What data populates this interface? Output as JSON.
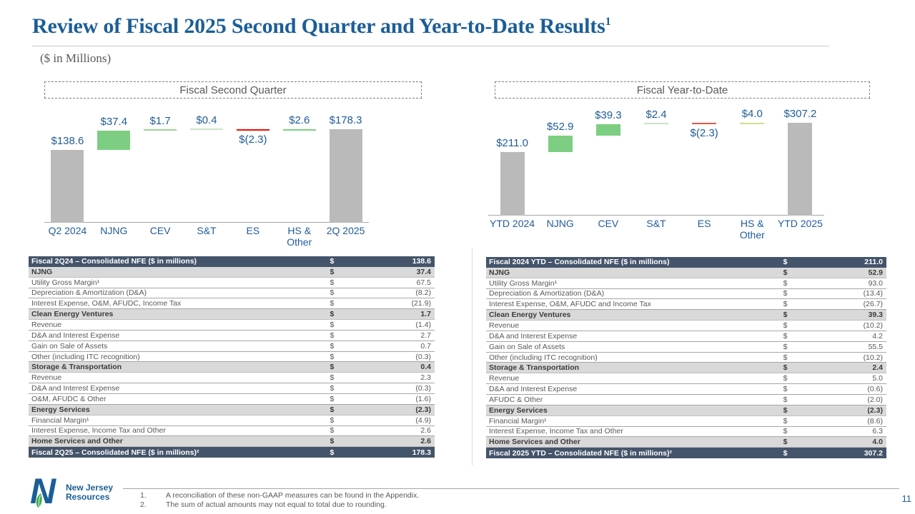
{
  "slide": {
    "title": "Review of Fiscal 2025 Second Quarter and Year-to-Date Results",
    "title_superscript": "1",
    "subtitle": "($ in Millions)",
    "page_number": "11",
    "logo": {
      "line1": "New Jersey",
      "line2": "Resources"
    },
    "footnotes": [
      {
        "num": "1.",
        "text": "A reconciliation of these non-GAAP measures can be found in the Appendix."
      },
      {
        "num": "2.",
        "text": "The sum of actual amounts may not equal to total due to rounding."
      }
    ]
  },
  "colors": {
    "title_blue": "#1B5E97",
    "chart_text_blue": "#1F5C99",
    "table_header_bg": "#44546A",
    "segment_row_bg": "#D9D9D9",
    "bar_gray": "#BABABA",
    "bar_green": "#7DCE82",
    "bar_pale_green": "#C9E5C4",
    "bar_red": "#F10A00",
    "bar_salmon": "#E8594C",
    "bar_yellow_green": "#CBE38B",
    "axis_gray": "#A6A6A6"
  },
  "chart_data": [
    {
      "type": "bar",
      "subtype": "waterfall",
      "title": "Fiscal Second Quarter",
      "categories": [
        "Q2 2024",
        "NJNG",
        "CEV",
        "S&T",
        "ES",
        "HS &\nOther",
        "2Q 2025"
      ],
      "values": [
        138.6,
        37.4,
        1.7,
        0.4,
        -2.3,
        2.6,
        178.3
      ],
      "labels": [
        "$138.6",
        "$37.4",
        "$1.7",
        "$0.4",
        "$(2.3)",
        "$2.6",
        "$178.3"
      ],
      "bar_roles": [
        "total",
        "delta",
        "delta",
        "delta",
        "delta",
        "delta",
        "total"
      ],
      "bar_colors": [
        "#BABABA",
        "#7DCE82",
        "#9AD49A",
        "#C9E5C4",
        "#F10A00",
        "#7DCE82",
        "#BABABA"
      ],
      "ylim": [
        0,
        190
      ],
      "grid": false,
      "legend": false
    },
    {
      "type": "bar",
      "subtype": "waterfall",
      "title": "Fiscal Year-to-Date",
      "categories": [
        "YTD 2024",
        "NJNG",
        "CEV",
        "S&T",
        "ES",
        "HS &\nOther",
        "YTD 2025"
      ],
      "values": [
        211.0,
        52.9,
        39.3,
        2.4,
        -2.3,
        4.0,
        307.2
      ],
      "labels": [
        "$211.0",
        "$52.9",
        "$39.3",
        "$2.4",
        "$(2.3)",
        "$4.0",
        "$307.2"
      ],
      "bar_roles": [
        "total",
        "delta",
        "delta",
        "delta",
        "delta",
        "delta",
        "total"
      ],
      "bar_colors": [
        "#BABABA",
        "#7DCE82",
        "#7DCE82",
        "#C9E5C4",
        "#E8594C",
        "#CBE38B",
        "#BABABA"
      ],
      "ylim": [
        0,
        330
      ],
      "grid": false,
      "legend": false
    }
  ],
  "tables": [
    {
      "name": "Fiscal Second Quarter reconciliation",
      "rows": [
        {
          "label": "Fiscal 2Q24 – Consolidated NFE ($ in millions)",
          "currency": "$",
          "amount": "138.6",
          "style": "total"
        },
        {
          "label": "NJNG",
          "currency": "$",
          "amount": "37.4",
          "style": "segment"
        },
        {
          "label": "Utility Gross Margin¹",
          "currency": "$",
          "amount": "67.5",
          "style": "detail"
        },
        {
          "label": "Depreciation & Amortization (D&A)",
          "currency": "$",
          "amount": "(8.2)",
          "style": "detail"
        },
        {
          "label": "Interest Expense, O&M, AFUDC, Income Tax",
          "currency": "$",
          "amount": "(21.9)",
          "style": "detail"
        },
        {
          "label": "Clean Energy Ventures",
          "currency": "$",
          "amount": "1.7",
          "style": "segment"
        },
        {
          "label": "Revenue",
          "currency": "$",
          "amount": "(1.4)",
          "style": "detail"
        },
        {
          "label": "D&A and Interest Expense",
          "currency": "$",
          "amount": "2.7",
          "style": "detail"
        },
        {
          "label": "Gain on Sale of Assets",
          "currency": "$",
          "amount": "0.7",
          "style": "detail"
        },
        {
          "label": "Other (including ITC recognition)",
          "currency": "$",
          "amount": "(0.3)",
          "style": "detail"
        },
        {
          "label": "Storage & Transportation",
          "currency": "$",
          "amount": "0.4",
          "style": "segment"
        },
        {
          "label": "Revenue",
          "currency": "$",
          "amount": "2.3",
          "style": "detail"
        },
        {
          "label": "D&A and Interest Expense",
          "currency": "$",
          "amount": "(0.3)",
          "style": "detail"
        },
        {
          "label": "O&M, AFUDC & Other",
          "currency": "$",
          "amount": "(1.6)",
          "style": "detail"
        },
        {
          "label": "Energy Services",
          "currency": "$",
          "amount": "(2.3)",
          "style": "segment"
        },
        {
          "label": "Financial Margin¹",
          "currency": "$",
          "amount": "(4.9)",
          "style": "detail"
        },
        {
          "label": "Interest Expense, Income Tax and Other",
          "currency": "$",
          "amount": "2.6",
          "style": "detail"
        },
        {
          "label": "Home Services and Other",
          "currency": "$",
          "amount": "2.6",
          "style": "segment"
        },
        {
          "label": "Fiscal 2Q25 – Consolidated NFE ($ in millions)²",
          "currency": "$",
          "amount": "178.3",
          "style": "total"
        }
      ]
    },
    {
      "name": "Fiscal Year-to-Date reconciliation",
      "rows": [
        {
          "label": "Fiscal 2024 YTD – Consolidated NFE ($ in millions)",
          "currency": "$",
          "amount": "211.0",
          "style": "total"
        },
        {
          "label": "NJNG",
          "currency": "$",
          "amount": "52.9",
          "style": "segment"
        },
        {
          "label": "Utility Gross Margin¹",
          "currency": "$",
          "amount": "93.0",
          "style": "detail"
        },
        {
          "label": "Depreciation & Amortization (D&A)",
          "currency": "$",
          "amount": "(13.4)",
          "style": "detail"
        },
        {
          "label": "Interest Expense, O&M, AFUDC and Income Tax",
          "currency": "$",
          "amount": "(26.7)",
          "style": "detail"
        },
        {
          "label": "Clean Energy Ventures",
          "currency": "$",
          "amount": "39.3",
          "style": "segment"
        },
        {
          "label": "Revenue",
          "currency": "$",
          "amount": "(10.2)",
          "style": "detail"
        },
        {
          "label": "D&A and Interest Expense",
          "currency": "$",
          "amount": "4.2",
          "style": "detail"
        },
        {
          "label": "Gain on Sale of Assets",
          "currency": "$",
          "amount": "55.5",
          "style": "detail"
        },
        {
          "label": "Other (including ITC recognition)",
          "currency": "$",
          "amount": "(10.2)",
          "style": "detail"
        },
        {
          "label": "Storage & Transportation",
          "currency": "$",
          "amount": "2.4",
          "style": "segment"
        },
        {
          "label": "Revenue",
          "currency": "$",
          "amount": "5.0",
          "style": "detail"
        },
        {
          "label": "D&A and Interest Expense",
          "currency": "$",
          "amount": "(0.6)",
          "style": "detail"
        },
        {
          "label": "AFUDC & Other",
          "currency": "$",
          "amount": "(2.0)",
          "style": "detail"
        },
        {
          "label": "Energy Services",
          "currency": "$",
          "amount": "(2.3)",
          "style": "segment"
        },
        {
          "label": "Financial Margin¹",
          "currency": "$",
          "amount": "(8.6)",
          "style": "detail"
        },
        {
          "label": "Interest Expense, Income Tax and Other",
          "currency": "$",
          "amount": "6.3",
          "style": "detail"
        },
        {
          "label": "Home Services and Other",
          "currency": "$",
          "amount": "4.0",
          "style": "segment"
        },
        {
          "label": "Fiscal 2025 YTD – Consolidated NFE ($ in millions)²",
          "currency": "$",
          "amount": "307.2",
          "style": "total"
        }
      ]
    }
  ]
}
